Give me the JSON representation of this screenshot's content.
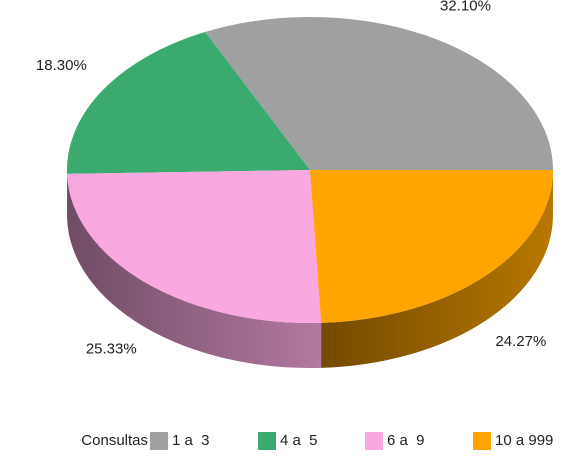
{
  "chart_data": {
    "type": "pie3d",
    "legend_title": "Consultas",
    "categories": [
      "1 a  3",
      "4 a  5",
      "6 a  9",
      "10 a 999"
    ],
    "values": [
      32.1,
      18.3,
      25.33,
      24.27
    ],
    "value_labels": [
      "32.10%",
      "18.30%",
      "25.33%",
      "24.27%"
    ],
    "colors": [
      "#a0a0a0",
      "#3aaa6e",
      "#f9a8e0",
      "#ffa500"
    ],
    "legend": "bottom"
  }
}
